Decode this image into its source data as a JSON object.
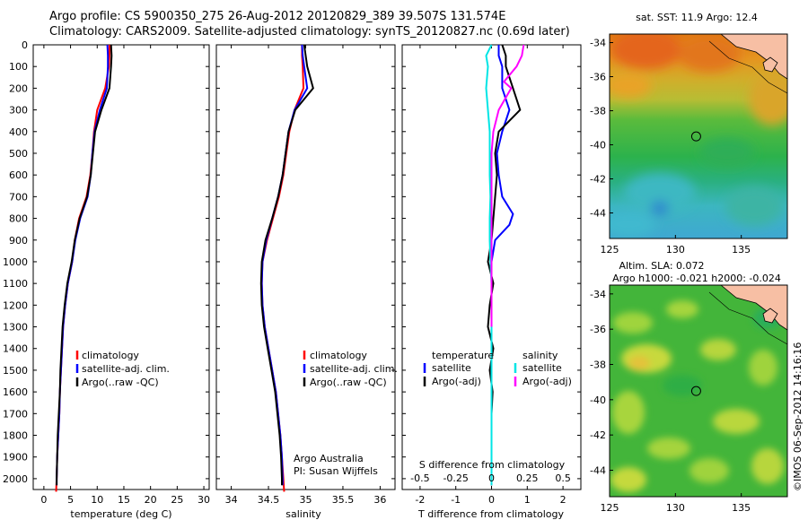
{
  "header": {
    "line1": "Argo profile: CS 5900350_275 26-Aug-2012 20120829_389 39.507S 131.574E",
    "line2": "Climatology: CARS2009. Satellite-adjusted climatology: synTS_20120827.nc (0.69d later)"
  },
  "colors": {
    "climatology": "#ff0000",
    "satellite": "#0000ff",
    "argo": "#000000",
    "temp_sat": "#0000ff",
    "sal_sat": "#00e5e5",
    "sal_argo": "#ff00ff"
  },
  "chart_data": [
    {
      "type": "line",
      "id": "temperature",
      "xlabel": "temperature (deg C)",
      "ylabel": "",
      "xlim": [
        -2,
        31
      ],
      "ylim": [
        2050,
        0
      ],
      "xticks": [
        0,
        5,
        10,
        15,
        20,
        25,
        30
      ],
      "yticks": [
        0,
        100,
        200,
        300,
        400,
        500,
        600,
        700,
        800,
        900,
        1000,
        1100,
        1200,
        1300,
        1400,
        1500,
        1600,
        1700,
        1800,
        1900,
        2000
      ],
      "legend": [
        "climatology",
        "satellite-adj. clim.",
        "Argo(..raw -QC)"
      ],
      "series": [
        {
          "name": "climatology",
          "color": "#ff0000",
          "points": [
            [
              12.3,
              0
            ],
            [
              12.3,
              50
            ],
            [
              12.2,
              100
            ],
            [
              11.5,
              200
            ],
            [
              10,
              300
            ],
            [
              9.4,
              400
            ],
            [
              9.1,
              500
            ],
            [
              8.7,
              600
            ],
            [
              8,
              700
            ],
            [
              6.6,
              800
            ],
            [
              5.8,
              900
            ],
            [
              5.3,
              1000
            ],
            [
              4.5,
              1100
            ],
            [
              4,
              1200
            ],
            [
              3.6,
              1300
            ],
            [
              3.4,
              1400
            ],
            [
              3.2,
              1500
            ],
            [
              3,
              1600
            ],
            [
              2.9,
              1700
            ],
            [
              2.7,
              1800
            ],
            [
              2.5,
              1900
            ],
            [
              2.4,
              2000
            ],
            [
              2.3,
              2060
            ]
          ]
        },
        {
          "name": "satellite-adj. clim.",
          "color": "#0000ff",
          "points": [
            [
              11.9,
              0
            ],
            [
              12,
              50
            ],
            [
              12,
              100
            ],
            [
              11.8,
              200
            ],
            [
              10.5,
              300
            ],
            [
              9.5,
              400
            ],
            [
              9.1,
              500
            ],
            [
              8.8,
              600
            ],
            [
              8.2,
              700
            ],
            [
              6.8,
              800
            ],
            [
              5.9,
              900
            ],
            [
              5.3,
              1000
            ],
            [
              4.5,
              1100
            ],
            [
              4,
              1200
            ],
            [
              3.6,
              1300
            ],
            [
              3.4,
              1400
            ],
            [
              3.2,
              1500
            ],
            [
              3,
              1600
            ],
            [
              2.9,
              1700
            ],
            [
              2.7,
              1800
            ],
            [
              2.5,
              1900
            ],
            [
              2.4,
              2000
            ],
            [
              2.4,
              2030
            ]
          ]
        },
        {
          "name": "Argo(..raw -QC)",
          "color": "#000000",
          "points": [
            [
              12.6,
              0
            ],
            [
              12.7,
              50
            ],
            [
              12.6,
              100
            ],
            [
              12.3,
              200
            ],
            [
              10.8,
              300
            ],
            [
              9.6,
              400
            ],
            [
              9.2,
              500
            ],
            [
              8.8,
              600
            ],
            [
              8.1,
              700
            ],
            [
              6.7,
              800
            ],
            [
              5.8,
              900
            ],
            [
              5.2,
              1000
            ],
            [
              4.4,
              1100
            ],
            [
              3.9,
              1200
            ],
            [
              3.5,
              1300
            ],
            [
              3.3,
              1400
            ],
            [
              3.1,
              1500
            ],
            [
              3,
              1600
            ],
            [
              2.8,
              1700
            ],
            [
              2.6,
              1800
            ],
            [
              2.5,
              1900
            ],
            [
              2.4,
              2000
            ],
            [
              2.4,
              2030
            ]
          ]
        }
      ]
    },
    {
      "type": "line",
      "id": "salinity",
      "xlabel": "salinity",
      "xlim": [
        33.8,
        36.2
      ],
      "ylim": [
        2050,
        0
      ],
      "xticks": [
        34,
        34.5,
        35,
        35.5,
        36
      ],
      "xticklabels": [
        "34",
        "34.5",
        "35",
        "35.5",
        "36"
      ],
      "legend": [
        "climatology",
        "satellite-adj. clim.",
        "Argo(..raw -QC)"
      ],
      "annotation": [
        "Argo Australia",
        "PI: Susan Wijffels"
      ],
      "series": [
        {
          "name": "climatology",
          "color": "#ff0000",
          "points": [
            [
              34.95,
              0
            ],
            [
              34.95,
              50
            ],
            [
              34.96,
              100
            ],
            [
              34.97,
              200
            ],
            [
              34.85,
              300
            ],
            [
              34.78,
              400
            ],
            [
              34.74,
              500
            ],
            [
              34.7,
              600
            ],
            [
              34.64,
              700
            ],
            [
              34.56,
              800
            ],
            [
              34.48,
              900
            ],
            [
              34.42,
              1000
            ],
            [
              34.41,
              1100
            ],
            [
              34.42,
              1200
            ],
            [
              34.45,
              1300
            ],
            [
              34.5,
              1400
            ],
            [
              34.55,
              1500
            ],
            [
              34.6,
              1600
            ],
            [
              34.63,
              1700
            ],
            [
              34.66,
              1800
            ],
            [
              34.68,
              1900
            ],
            [
              34.7,
              2000
            ],
            [
              34.71,
              2060
            ]
          ]
        },
        {
          "name": "satellite-adj. clim.",
          "color": "#0000ff",
          "points": [
            [
              34.95,
              0
            ],
            [
              34.96,
              50
            ],
            [
              34.98,
              100
            ],
            [
              35.02,
              200
            ],
            [
              34.85,
              300
            ],
            [
              34.77,
              400
            ],
            [
              34.73,
              500
            ],
            [
              34.69,
              600
            ],
            [
              34.63,
              700
            ],
            [
              34.55,
              800
            ],
            [
              34.47,
              900
            ],
            [
              34.42,
              1000
            ],
            [
              34.41,
              1100
            ],
            [
              34.42,
              1200
            ],
            [
              34.45,
              1300
            ],
            [
              34.5,
              1400
            ],
            [
              34.55,
              1500
            ],
            [
              34.6,
              1600
            ],
            [
              34.63,
              1700
            ],
            [
              34.66,
              1800
            ],
            [
              34.68,
              1900
            ],
            [
              34.69,
              2000
            ],
            [
              34.69,
              2030
            ]
          ]
        },
        {
          "name": "Argo(..raw -QC)",
          "color": "#000000",
          "points": [
            [
              34.98,
              0
            ],
            [
              35,
              50
            ],
            [
              35.02,
              100
            ],
            [
              35.1,
              200
            ],
            [
              34.86,
              300
            ],
            [
              34.77,
              400
            ],
            [
              34.73,
              500
            ],
            [
              34.69,
              600
            ],
            [
              34.63,
              700
            ],
            [
              34.55,
              800
            ],
            [
              34.46,
              900
            ],
            [
              34.41,
              1000
            ],
            [
              34.4,
              1100
            ],
            [
              34.41,
              1200
            ],
            [
              34.44,
              1300
            ],
            [
              34.49,
              1400
            ],
            [
              34.54,
              1500
            ],
            [
              34.59,
              1600
            ],
            [
              34.62,
              1700
            ],
            [
              34.65,
              1800
            ],
            [
              34.67,
              1900
            ],
            [
              34.68,
              2000
            ],
            [
              34.68,
              2030
            ]
          ]
        }
      ]
    },
    {
      "type": "line",
      "id": "differences",
      "xlabel": "T difference from climatology",
      "xlabel_top": "S difference from climatology",
      "xlim": [
        -2.5,
        2.5
      ],
      "ylim": [
        2050,
        0
      ],
      "xticks": [
        -2,
        -1,
        0,
        1,
        2
      ],
      "xticklabels": [
        "-2",
        "-1",
        "0",
        "1",
        "2"
      ],
      "top_ticklabels": [
        "-0.5",
        "-0.25",
        "0",
        "0.25",
        "0.5"
      ],
      "top_tick_positions_T": [
        -2,
        -1,
        0,
        1,
        2
      ],
      "legend_temperature": {
        "title": "temperature",
        "items": [
          "satellite",
          "Argo(-adj)"
        ]
      },
      "legend_salinity": {
        "title": "salinity",
        "items": [
          "satellite",
          "Argo(-adj)"
        ]
      },
      "series": [
        {
          "name": "temperature satellite",
          "color": "#0000ff",
          "points": [
            [
              0.2,
              0
            ],
            [
              0.2,
              50
            ],
            [
              0.3,
              100
            ],
            [
              0.3,
              200
            ],
            [
              0.5,
              300
            ],
            [
              0.3,
              400
            ],
            [
              0.15,
              500
            ],
            [
              0.2,
              600
            ],
            [
              0.3,
              700
            ],
            [
              0.6,
              780
            ],
            [
              0.5,
              830
            ],
            [
              0.1,
              900
            ],
            [
              0,
              1000
            ],
            [
              0,
              1200
            ],
            [
              0,
              1500
            ],
            [
              0,
              1800
            ],
            [
              0,
              2030
            ]
          ]
        },
        {
          "name": "temperature Argo(-adj)",
          "color": "#000000",
          "points": [
            [
              0.3,
              0
            ],
            [
              0.4,
              50
            ],
            [
              0.4,
              100
            ],
            [
              0.6,
              200
            ],
            [
              0.8,
              300
            ],
            [
              0.2,
              400
            ],
            [
              0.1,
              500
            ],
            [
              0.15,
              600
            ],
            [
              0.1,
              700
            ],
            [
              0.05,
              800
            ],
            [
              0,
              900
            ],
            [
              -0.1,
              1000
            ],
            [
              0.05,
              1100
            ],
            [
              -0.05,
              1200
            ],
            [
              -0.1,
              1300
            ],
            [
              0.05,
              1400
            ],
            [
              -0.05,
              1500
            ],
            [
              0.03,
              1600
            ],
            [
              0,
              1700
            ],
            [
              0,
              1800
            ],
            [
              0,
              1900
            ],
            [
              0,
              2000
            ],
            [
              0,
              2030
            ]
          ]
        },
        {
          "name": "salinity satellite",
          "color": "#00e5e5",
          "points": [
            [
              0,
              0
            ],
            [
              -0.15,
              50
            ],
            [
              -0.1,
              100
            ],
            [
              -0.15,
              200
            ],
            [
              -0.1,
              300
            ],
            [
              -0.05,
              400
            ],
            [
              -0.05,
              500
            ],
            [
              -0.05,
              600
            ],
            [
              -0.03,
              700
            ],
            [
              -0.05,
              800
            ],
            [
              -0.05,
              900
            ],
            [
              -0.03,
              1000
            ],
            [
              0,
              1100
            ],
            [
              0,
              1200
            ],
            [
              0,
              1300
            ],
            [
              0,
              1500
            ],
            [
              0,
              1800
            ],
            [
              0,
              2030
            ]
          ]
        },
        {
          "name": "salinity Argo(-adj)",
          "color": "#ff00ff",
          "points": [
            [
              0.9,
              0
            ],
            [
              0.85,
              50
            ],
            [
              0.7,
              100
            ],
            [
              0.35,
              170
            ],
            [
              0.55,
              200
            ],
            [
              0.2,
              300
            ],
            [
              0.05,
              400
            ],
            [
              0,
              500
            ],
            [
              0,
              700
            ],
            [
              0,
              1000
            ],
            [
              0,
              1300
            ]
          ]
        }
      ]
    }
  ],
  "map_sst": {
    "title": "sat. SST: 11.9 Argo: 12.4",
    "xticks": [
      125,
      130,
      135
    ],
    "yticks": [
      -34,
      -36,
      -38,
      -40,
      -42,
      -44
    ],
    "xlim": [
      125,
      138.5
    ],
    "ylim": [
      -45.5,
      -33.5
    ],
    "marker": {
      "lon": 131.574,
      "lat": -39.507
    }
  },
  "map_sla": {
    "title_line1": "Altim. SLA: 0.072",
    "title_line2": "Argo h1000: -0.021 h2000: -0.024",
    "xticks": [
      125,
      130,
      135
    ],
    "yticks": [
      -34,
      -36,
      -38,
      -40,
      -42,
      -44
    ],
    "xlim": [
      125,
      138.5
    ],
    "ylim": [
      -45.5,
      -33.5
    ],
    "marker": {
      "lon": 131.574,
      "lat": -39.507
    }
  },
  "credit": "©IMOS 06-Sep-2012 14:16:16"
}
